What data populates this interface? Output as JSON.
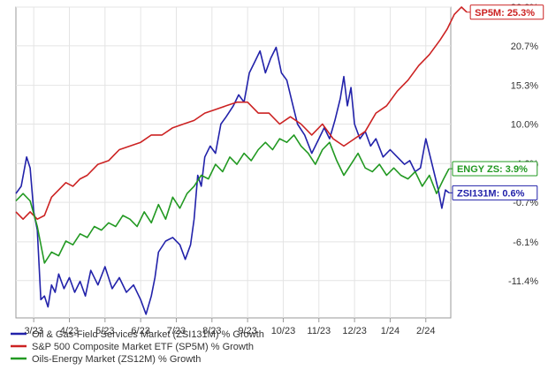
{
  "chart_data": {
    "type": "line",
    "title": "",
    "xlabel": "",
    "ylabel": "",
    "grid": true,
    "legend_position": "bottom-left",
    "x_tick_labels": [
      "3/23",
      "4/23",
      "5/23",
      "6/23",
      "7/23",
      "8/23",
      "9/23",
      "10/23",
      "11/23",
      "12/23",
      "1/24",
      "2/24"
    ],
    "y_tick_labels": [
      "26.0%",
      "20.7%",
      "15.3%",
      "10.0%",
      "4.6%",
      "-0.7%",
      "-6.1%",
      "-11.4%"
    ],
    "y_ticks": [
      26.0,
      20.7,
      15.3,
      10.0,
      4.6,
      -0.7,
      -6.1,
      -11.4
    ],
    "ylim": [
      -16.5,
      26.0
    ],
    "x_range_months": [
      0,
      12.2
    ],
    "series": [
      {
        "name": "Oil & Gas-Field Services Market (ZSI131M) % Growth",
        "color": "#2222aa",
        "end_tag": "ZSI131M: 0.6%",
        "points": [
          [
            0,
            0.5
          ],
          [
            0.15,
            1.5
          ],
          [
            0.3,
            5.5
          ],
          [
            0.4,
            4.0
          ],
          [
            0.5,
            -2.0
          ],
          [
            0.6,
            -4.5
          ],
          [
            0.7,
            -14.0
          ],
          [
            0.8,
            -13.5
          ],
          [
            0.9,
            -15.0
          ],
          [
            1.0,
            -12.0
          ],
          [
            1.1,
            -13.0
          ],
          [
            1.2,
            -10.5
          ],
          [
            1.35,
            -12.5
          ],
          [
            1.5,
            -11.0
          ],
          [
            1.65,
            -13.0
          ],
          [
            1.8,
            -11.5
          ],
          [
            1.95,
            -13.5
          ],
          [
            2.1,
            -10.0
          ],
          [
            2.3,
            -12.0
          ],
          [
            2.5,
            -9.5
          ],
          [
            2.7,
            -12.5
          ],
          [
            2.9,
            -11.0
          ],
          [
            3.1,
            -13.0
          ],
          [
            3.3,
            -12.0
          ],
          [
            3.5,
            -14.0
          ],
          [
            3.65,
            -16.0
          ],
          [
            3.8,
            -13.5
          ],
          [
            3.9,
            -11.0
          ],
          [
            4.0,
            -7.5
          ],
          [
            4.2,
            -6.0
          ],
          [
            4.4,
            -5.5
          ],
          [
            4.6,
            -6.5
          ],
          [
            4.75,
            -8.5
          ],
          [
            4.9,
            -6.5
          ],
          [
            5.0,
            -3.0
          ],
          [
            5.1,
            3.0
          ],
          [
            5.2,
            1.5
          ],
          [
            5.3,
            5.5
          ],
          [
            5.45,
            7.0
          ],
          [
            5.6,
            6.0
          ],
          [
            5.75,
            10.0
          ],
          [
            5.9,
            11.0
          ],
          [
            6.1,
            12.5
          ],
          [
            6.25,
            14.0
          ],
          [
            6.4,
            13.0
          ],
          [
            6.55,
            17.0
          ],
          [
            6.7,
            18.5
          ],
          [
            6.85,
            20.0
          ],
          [
            7.0,
            17.0
          ],
          [
            7.15,
            19.0
          ],
          [
            7.3,
            20.5
          ],
          [
            7.45,
            17.0
          ],
          [
            7.6,
            16.0
          ],
          [
            7.75,
            13.0
          ],
          [
            7.9,
            10.0
          ],
          [
            8.1,
            8.5
          ],
          [
            8.3,
            6.0
          ],
          [
            8.5,
            8.0
          ],
          [
            8.65,
            9.5
          ],
          [
            8.8,
            8.0
          ],
          [
            8.95,
            10.5
          ],
          [
            9.1,
            13.5
          ],
          [
            9.2,
            16.5
          ],
          [
            9.3,
            12.5
          ],
          [
            9.4,
            15.0
          ],
          [
            9.5,
            10.0
          ],
          [
            9.65,
            8.0
          ],
          [
            9.8,
            9.0
          ],
          [
            9.95,
            7.0
          ],
          [
            10.1,
            8.0
          ],
          [
            10.3,
            5.5
          ],
          [
            10.5,
            6.5
          ],
          [
            10.7,
            5.5
          ],
          [
            10.9,
            4.5
          ],
          [
            11.05,
            5.0
          ],
          [
            11.2,
            3.5
          ],
          [
            11.35,
            4.0
          ],
          [
            11.5,
            8.0
          ],
          [
            11.6,
            6.0
          ],
          [
            11.75,
            3.0
          ],
          [
            11.85,
            1.0
          ],
          [
            11.95,
            -1.5
          ],
          [
            12.05,
            1.0
          ],
          [
            12.15,
            0.6
          ]
        ]
      },
      {
        "name": "S&P 500 Composite Market ETF (SP5M) % Growth",
        "color": "#cc2222",
        "end_tag": "SP5M: 25.3%",
        "points": [
          [
            0,
            -2.0
          ],
          [
            0.2,
            -3.0
          ],
          [
            0.4,
            -2.0
          ],
          [
            0.6,
            -3.0
          ],
          [
            0.8,
            -2.5
          ],
          [
            1.0,
            0.0
          ],
          [
            1.2,
            1.0
          ],
          [
            1.4,
            2.0
          ],
          [
            1.6,
            1.5
          ],
          [
            1.8,
            2.5
          ],
          [
            2.0,
            3.0
          ],
          [
            2.3,
            4.5
          ],
          [
            2.6,
            5.0
          ],
          [
            2.9,
            6.5
          ],
          [
            3.2,
            7.0
          ],
          [
            3.5,
            7.5
          ],
          [
            3.8,
            8.5
          ],
          [
            4.1,
            8.5
          ],
          [
            4.4,
            9.5
          ],
          [
            4.7,
            10.0
          ],
          [
            5.0,
            10.5
          ],
          [
            5.3,
            11.5
          ],
          [
            5.6,
            12.0
          ],
          [
            5.9,
            12.5
          ],
          [
            6.2,
            13.0
          ],
          [
            6.5,
            13.0
          ],
          [
            6.8,
            11.5
          ],
          [
            7.1,
            11.5
          ],
          [
            7.4,
            10.0
          ],
          [
            7.7,
            11.0
          ],
          [
            8.0,
            10.0
          ],
          [
            8.3,
            8.5
          ],
          [
            8.6,
            10.0
          ],
          [
            8.9,
            8.0
          ],
          [
            9.2,
            7.0
          ],
          [
            9.5,
            8.0
          ],
          [
            9.8,
            9.0
          ],
          [
            10.1,
            11.5
          ],
          [
            10.4,
            12.5
          ],
          [
            10.7,
            14.5
          ],
          [
            11.0,
            16.0
          ],
          [
            11.3,
            18.0
          ],
          [
            11.6,
            19.5
          ],
          [
            11.9,
            21.5
          ],
          [
            12.1,
            23.0
          ],
          [
            12.3,
            25.0
          ],
          [
            12.5,
            26.0
          ],
          [
            12.65,
            25.3
          ]
        ]
      },
      {
        "name": "Oils-Energy Market (ZS12M) % Growth",
        "color": "#229922",
        "end_tag": "ENGY ZS: 3.9%",
        "points": [
          [
            0,
            -0.5
          ],
          [
            0.2,
            0.5
          ],
          [
            0.4,
            -0.5
          ],
          [
            0.6,
            -4.0
          ],
          [
            0.8,
            -9.0
          ],
          [
            1.0,
            -7.5
          ],
          [
            1.2,
            -8.0
          ],
          [
            1.4,
            -6.0
          ],
          [
            1.6,
            -6.5
          ],
          [
            1.8,
            -5.0
          ],
          [
            2.0,
            -5.5
          ],
          [
            2.2,
            -4.0
          ],
          [
            2.4,
            -4.5
          ],
          [
            2.6,
            -3.5
          ],
          [
            2.8,
            -4.0
          ],
          [
            3.0,
            -2.5
          ],
          [
            3.2,
            -3.0
          ],
          [
            3.4,
            -4.0
          ],
          [
            3.6,
            -2.0
          ],
          [
            3.8,
            -3.5
          ],
          [
            4.0,
            -1.0
          ],
          [
            4.2,
            -3.0
          ],
          [
            4.4,
            0.0
          ],
          [
            4.6,
            -1.5
          ],
          [
            4.8,
            0.5
          ],
          [
            5.0,
            1.5
          ],
          [
            5.2,
            3.0
          ],
          [
            5.4,
            2.5
          ],
          [
            5.6,
            4.5
          ],
          [
            5.8,
            3.5
          ],
          [
            6.0,
            5.5
          ],
          [
            6.2,
            4.5
          ],
          [
            6.4,
            6.0
          ],
          [
            6.6,
            5.0
          ],
          [
            6.8,
            6.5
          ],
          [
            7.0,
            7.5
          ],
          [
            7.2,
            6.5
          ],
          [
            7.4,
            8.0
          ],
          [
            7.6,
            7.5
          ],
          [
            7.8,
            8.5
          ],
          [
            8.0,
            7.0
          ],
          [
            8.2,
            6.0
          ],
          [
            8.4,
            4.5
          ],
          [
            8.6,
            6.5
          ],
          [
            8.8,
            7.5
          ],
          [
            9.0,
            5.0
          ],
          [
            9.2,
            3.0
          ],
          [
            9.4,
            4.5
          ],
          [
            9.6,
            6.0
          ],
          [
            9.8,
            4.0
          ],
          [
            10.0,
            3.5
          ],
          [
            10.2,
            4.5
          ],
          [
            10.4,
            3.0
          ],
          [
            10.6,
            4.0
          ],
          [
            10.8,
            3.0
          ],
          [
            11.0,
            2.5
          ],
          [
            11.2,
            3.5
          ],
          [
            11.4,
            1.5
          ],
          [
            11.6,
            3.0
          ],
          [
            11.8,
            0.5
          ],
          [
            12.0,
            2.5
          ],
          [
            12.15,
            3.9
          ]
        ]
      }
    ]
  }
}
